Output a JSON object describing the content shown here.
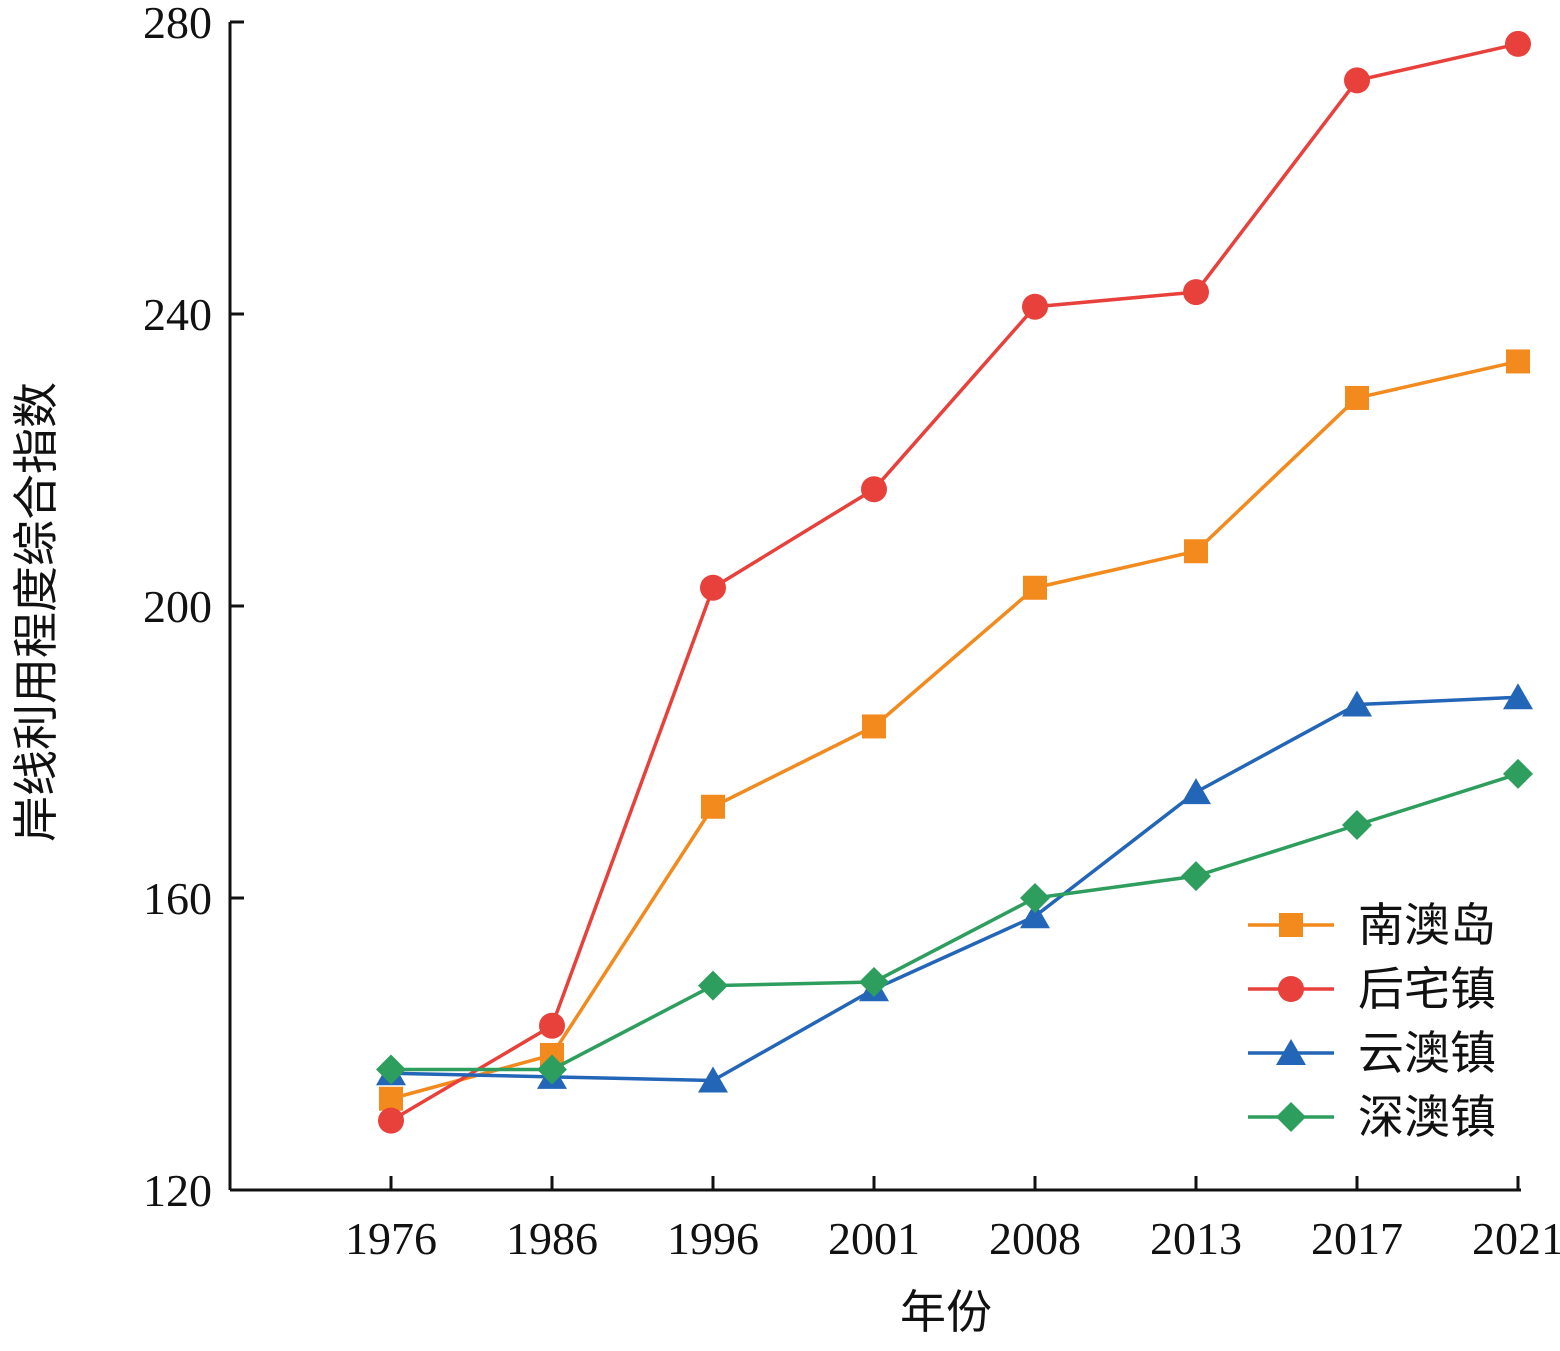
{
  "chart_data": {
    "type": "line",
    "xlabel": "年份",
    "ylabel": "岸线利用程度综合指数",
    "categories": [
      "1976",
      "1986",
      "1996",
      "2001",
      "2008",
      "2013",
      "2017",
      "2021"
    ],
    "ylim": [
      120,
      280
    ],
    "yticks": [
      120,
      160,
      200,
      240,
      280
    ],
    "grid": false,
    "legend_position": "bottom-right",
    "series": [
      {
        "name": "南澳岛",
        "color": "#f28a1e",
        "marker": "square",
        "values": [
          132.5,
          138.5,
          172.5,
          183.5,
          202.5,
          207.5,
          228.5,
          233.5
        ]
      },
      {
        "name": "后宅镇",
        "color": "#e8413c",
        "marker": "circle",
        "values": [
          129.5,
          142.5,
          202.5,
          216,
          241,
          243,
          272,
          277
        ]
      },
      {
        "name": "云澳镇",
        "color": "#2366b8",
        "marker": "triangle",
        "values": [
          136,
          135.5,
          135,
          147.5,
          157.5,
          174.5,
          186.5,
          187.5
        ]
      },
      {
        "name": "深澳镇",
        "color": "#2e9e5e",
        "marker": "diamond",
        "values": [
          136.5,
          136.5,
          148,
          148.5,
          160,
          163,
          170,
          177
        ]
      }
    ]
  }
}
